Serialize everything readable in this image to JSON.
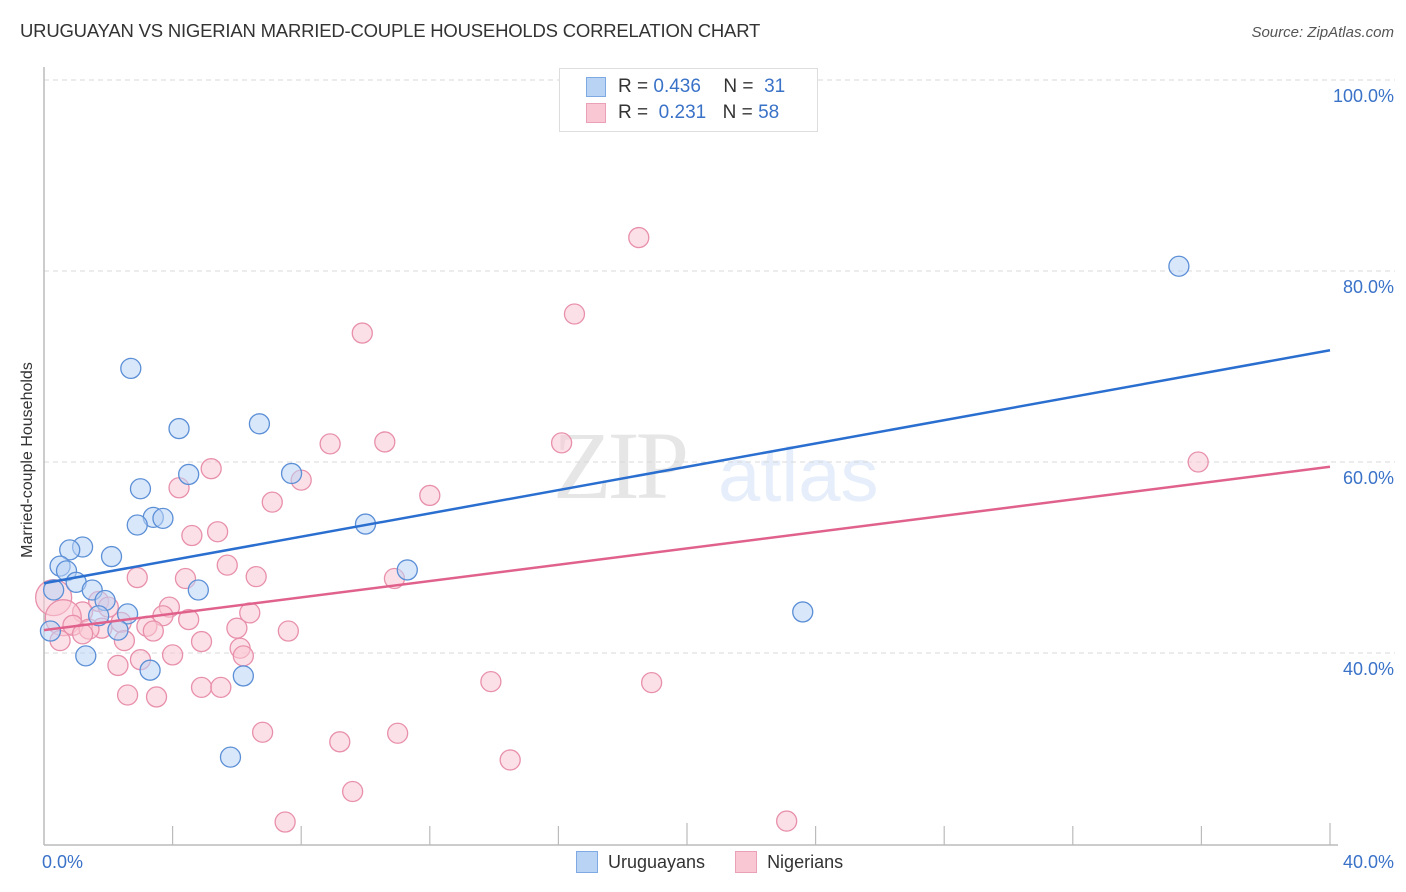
{
  "header": {
    "title": "URUGUAYAN VS NIGERIAN MARRIED-COUPLE HOUSEHOLDS CORRELATION CHART",
    "source": "Source: ZipAtlas.com"
  },
  "watermark": {
    "zip": "ZIP",
    "atlas": "atlas"
  },
  "legend": {
    "series": [
      {
        "r_label": "R =",
        "r_value": "0.436",
        "n_label": "N =",
        "n_value": "31",
        "name": "Uruguayans"
      },
      {
        "r_label": "R =",
        "r_value": "0.231",
        "n_label": "N =",
        "n_value": "58",
        "name": "Nigerians"
      }
    ]
  },
  "axes": {
    "ylabel": "Married-couple Households",
    "x_tick_left": "0.0%",
    "x_tick_right": "40.0%",
    "y_ticks": [
      "100.0%",
      "80.0%",
      "60.0%",
      "40.0%"
    ]
  },
  "colors": {
    "blue_fill": "#b9d3f5",
    "blue_stroke": "#5b8fd6",
    "blue_line": "#2a6fd0",
    "pink_fill": "#f9c6d4",
    "pink_stroke": "#e890ab",
    "pink_line": "#e0628c",
    "tick_label": "#3a72c8"
  },
  "chart_data": {
    "type": "scatter",
    "title": "URUGUAYAN VS NIGERIAN MARRIED-COUPLE HOUSEHOLDS CORRELATION CHART",
    "xlabel": "",
    "ylabel": "Married-couple Households",
    "xlim": [
      0,
      40
    ],
    "ylim": [
      19.8,
      101.3
    ],
    "x_ticks": [
      0,
      40
    ],
    "y_ticks": [
      40,
      60,
      80,
      100
    ],
    "grid": "horizontal dashed",
    "legend_position": "top-center and bottom",
    "series": [
      {
        "name": "Uruguayans",
        "R": 0.436,
        "N": 31,
        "trend": {
          "x": [
            0,
            40
          ],
          "y": [
            47.3,
            71.7
          ]
        },
        "points": [
          [
            35.3,
            80.5
          ],
          [
            2.7,
            69.8
          ],
          [
            6.7,
            64.0
          ],
          [
            4.2,
            63.5
          ],
          [
            4.5,
            58.7
          ],
          [
            7.7,
            58.8
          ],
          [
            3.0,
            57.2
          ],
          [
            3.4,
            54.2
          ],
          [
            3.7,
            54.1
          ],
          [
            2.9,
            53.4
          ],
          [
            10.0,
            53.5
          ],
          [
            1.2,
            51.1
          ],
          [
            0.8,
            50.8
          ],
          [
            2.1,
            50.1
          ],
          [
            0.5,
            49.1
          ],
          [
            0.7,
            48.6
          ],
          [
            11.3,
            48.7
          ],
          [
            1.0,
            47.4
          ],
          [
            0.3,
            46.6
          ],
          [
            4.8,
            46.6
          ],
          [
            1.5,
            46.6
          ],
          [
            1.9,
            45.5
          ],
          [
            2.6,
            44.1
          ],
          [
            1.7,
            43.9
          ],
          [
            23.6,
            44.3
          ],
          [
            2.3,
            42.4
          ],
          [
            0.2,
            42.3
          ],
          [
            1.3,
            39.7
          ],
          [
            3.3,
            38.2
          ],
          [
            6.2,
            37.6
          ],
          [
            5.8,
            29.1
          ]
        ]
      },
      {
        "name": "Nigerians",
        "R": 0.231,
        "N": 58,
        "trend": {
          "x": [
            0,
            40
          ],
          "y": [
            42.4,
            59.5
          ]
        },
        "points": [
          [
            18.5,
            83.5
          ],
          [
            16.5,
            75.5
          ],
          [
            9.9,
            73.5
          ],
          [
            8.9,
            61.9
          ],
          [
            10.6,
            62.1
          ],
          [
            16.1,
            62.0
          ],
          [
            35.9,
            60.0
          ],
          [
            5.2,
            59.3
          ],
          [
            4.2,
            57.3
          ],
          [
            8.0,
            58.1
          ],
          [
            12.0,
            56.5
          ],
          [
            7.1,
            55.8
          ],
          [
            5.4,
            52.7
          ],
          [
            4.6,
            52.3
          ],
          [
            5.7,
            49.2
          ],
          [
            6.6,
            48.0
          ],
          [
            2.9,
            47.9
          ],
          [
            4.4,
            47.8
          ],
          [
            10.9,
            47.8
          ],
          [
            0.3,
            45.8
          ],
          [
            1.7,
            45.4
          ],
          [
            2.0,
            44.8
          ],
          [
            3.9,
            44.8
          ],
          [
            1.2,
            44.3
          ],
          [
            6.4,
            44.2
          ],
          [
            3.7,
            43.9
          ],
          [
            0.6,
            43.7
          ],
          [
            2.4,
            43.2
          ],
          [
            0.9,
            42.9
          ],
          [
            3.2,
            42.8
          ],
          [
            1.8,
            42.6
          ],
          [
            1.4,
            42.5
          ],
          [
            6.0,
            42.6
          ],
          [
            7.6,
            42.3
          ],
          [
            3.4,
            42.3
          ],
          [
            2.5,
            41.3
          ],
          [
            4.9,
            41.2
          ],
          [
            0.5,
            41.3
          ],
          [
            6.1,
            40.5
          ],
          [
            6.2,
            39.7
          ],
          [
            4.0,
            39.8
          ],
          [
            3.0,
            39.3
          ],
          [
            2.3,
            38.7
          ],
          [
            13.9,
            37.0
          ],
          [
            18.9,
            36.9
          ],
          [
            4.9,
            36.4
          ],
          [
            5.5,
            36.4
          ],
          [
            2.6,
            35.6
          ],
          [
            3.5,
            35.4
          ],
          [
            6.8,
            31.7
          ],
          [
            11.0,
            31.6
          ],
          [
            9.2,
            30.7
          ],
          [
            14.5,
            28.8
          ],
          [
            9.6,
            25.5
          ],
          [
            7.5,
            22.3
          ],
          [
            23.1,
            22.4
          ],
          [
            1.2,
            42.0
          ],
          [
            4.5,
            43.5
          ]
        ]
      }
    ]
  }
}
